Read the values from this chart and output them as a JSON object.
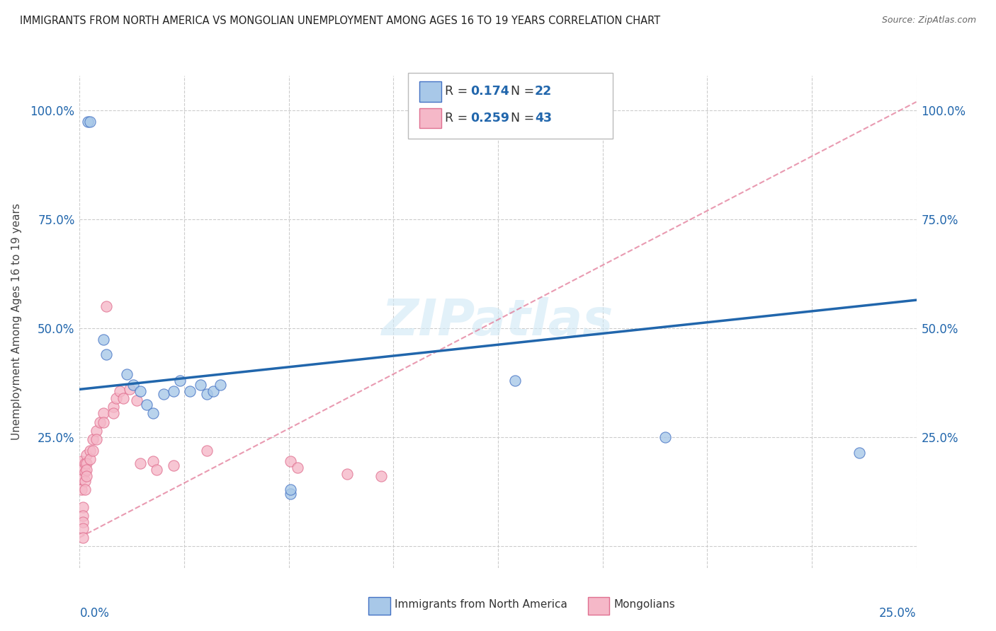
{
  "title": "IMMIGRANTS FROM NORTH AMERICA VS MONGOLIAN UNEMPLOYMENT AMONG AGES 16 TO 19 YEARS CORRELATION CHART",
  "source": "Source: ZipAtlas.com",
  "ylabel": "Unemployment Among Ages 16 to 19 years",
  "xlim": [
    0,
    0.25
  ],
  "ylim": [
    -0.05,
    1.08
  ],
  "yticks": [
    0.0,
    0.25,
    0.5,
    0.75,
    1.0
  ],
  "ytick_labels": [
    "0.0%",
    "25.0%",
    "50.0%",
    "75.0%",
    "100.0%"
  ],
  "xtick_left": "0.0%",
  "xtick_right": "25.0%",
  "color_blue_fill": "#a8c8e8",
  "color_blue_edge": "#4472c4",
  "color_pink_fill": "#f5b8c8",
  "color_pink_edge": "#e07090",
  "color_blue_line": "#2166ac",
  "color_pink_line": "#e07090",
  "color_grid": "#cccccc",
  "watermark_color": "#d0e8f5",
  "blue_line_x": [
    0.0,
    0.25
  ],
  "blue_line_y": [
    0.36,
    0.565
  ],
  "pink_line_x": [
    0.0,
    0.25
  ],
  "pink_line_y": [
    0.02,
    1.02
  ],
  "blue_scatter": [
    [
      0.0025,
      0.975
    ],
    [
      0.003,
      0.975
    ],
    [
      0.007,
      0.475
    ],
    [
      0.008,
      0.44
    ],
    [
      0.014,
      0.395
    ],
    [
      0.016,
      0.37
    ],
    [
      0.018,
      0.355
    ],
    [
      0.02,
      0.325
    ],
    [
      0.022,
      0.305
    ],
    [
      0.025,
      0.35
    ],
    [
      0.028,
      0.355
    ],
    [
      0.03,
      0.38
    ],
    [
      0.033,
      0.355
    ],
    [
      0.036,
      0.37
    ],
    [
      0.038,
      0.35
    ],
    [
      0.04,
      0.355
    ],
    [
      0.042,
      0.37
    ],
    [
      0.063,
      0.12
    ],
    [
      0.063,
      0.13
    ],
    [
      0.13,
      0.38
    ],
    [
      0.175,
      0.25
    ],
    [
      0.233,
      0.215
    ]
  ],
  "pink_scatter": [
    [
      0.0005,
      0.195
    ],
    [
      0.0005,
      0.175
    ],
    [
      0.0005,
      0.155
    ],
    [
      0.0005,
      0.13
    ],
    [
      0.001,
      0.09
    ],
    [
      0.001,
      0.07
    ],
    [
      0.001,
      0.055
    ],
    [
      0.001,
      0.04
    ],
    [
      0.001,
      0.02
    ],
    [
      0.0015,
      0.19
    ],
    [
      0.0015,
      0.17
    ],
    [
      0.0015,
      0.15
    ],
    [
      0.0015,
      0.13
    ],
    [
      0.002,
      0.21
    ],
    [
      0.002,
      0.19
    ],
    [
      0.002,
      0.175
    ],
    [
      0.002,
      0.16
    ],
    [
      0.003,
      0.22
    ],
    [
      0.003,
      0.2
    ],
    [
      0.004,
      0.245
    ],
    [
      0.004,
      0.22
    ],
    [
      0.005,
      0.265
    ],
    [
      0.005,
      0.245
    ],
    [
      0.006,
      0.285
    ],
    [
      0.007,
      0.305
    ],
    [
      0.007,
      0.285
    ],
    [
      0.008,
      0.55
    ],
    [
      0.01,
      0.32
    ],
    [
      0.01,
      0.305
    ],
    [
      0.011,
      0.34
    ],
    [
      0.012,
      0.355
    ],
    [
      0.013,
      0.34
    ],
    [
      0.015,
      0.36
    ],
    [
      0.017,
      0.335
    ],
    [
      0.018,
      0.19
    ],
    [
      0.022,
      0.195
    ],
    [
      0.023,
      0.175
    ],
    [
      0.028,
      0.185
    ],
    [
      0.038,
      0.22
    ],
    [
      0.063,
      0.195
    ],
    [
      0.065,
      0.18
    ],
    [
      0.08,
      0.165
    ],
    [
      0.09,
      0.16
    ]
  ]
}
